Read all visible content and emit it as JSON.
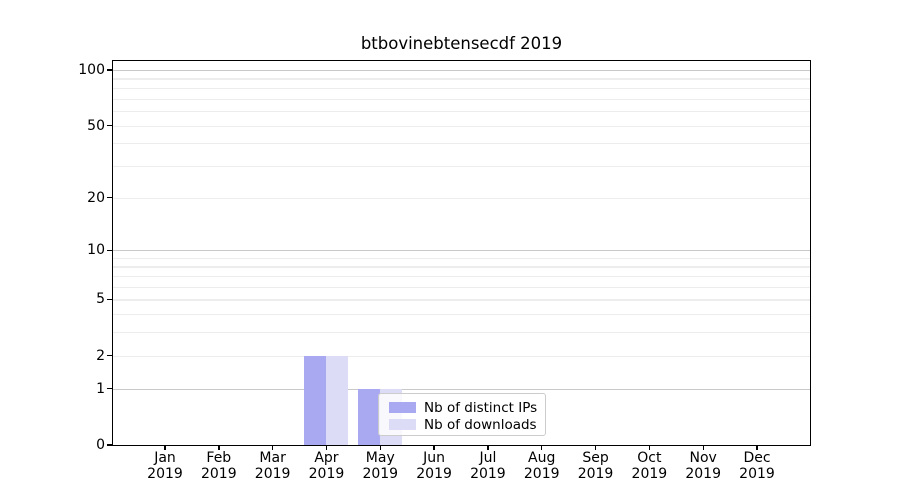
{
  "figure": {
    "title": "btbovinebtensecdf 2019",
    "background": "#ffffff"
  },
  "chart_data": {
    "type": "bar",
    "title": "btbovinebtensecdf 2019",
    "x": {
      "categories": [
        "Jan",
        "Feb",
        "Mar",
        "Apr",
        "May",
        "Jun",
        "Jul",
        "Aug",
        "Sep",
        "Oct",
        "Nov",
        "Dec"
      ],
      "year_label": "2019"
    },
    "y": {
      "scale": "log1p",
      "ticks": [
        0,
        1,
        2,
        5,
        10,
        20,
        50,
        100
      ],
      "range": [
        0,
        112
      ],
      "grid_major": [
        1,
        10,
        100
      ],
      "grid_minor": [
        2,
        3,
        4,
        5,
        6,
        7,
        8,
        9,
        20,
        30,
        40,
        50,
        60,
        70,
        80,
        90
      ]
    },
    "series": [
      {
        "name": "Nb of distinct IPs",
        "color": "#a9a9f1",
        "values": [
          0,
          0,
          0,
          2,
          1,
          0,
          0,
          0,
          0,
          0,
          0,
          0
        ]
      },
      {
        "name": "Nb of downloads",
        "color": "#dcdcf6",
        "values": [
          0,
          0,
          0,
          2,
          1,
          0,
          0,
          0,
          0,
          0,
          0,
          0
        ]
      }
    ],
    "legend": {
      "position": "lower-center-inside",
      "items": [
        "Nb of distinct IPs",
        "Nb of downloads"
      ]
    },
    "grid": "on"
  },
  "colors": {
    "grid_major": "#c9c9c9",
    "grid_minor": "#ededed",
    "spine": "#000000",
    "legend_border": "#cccccc"
  }
}
